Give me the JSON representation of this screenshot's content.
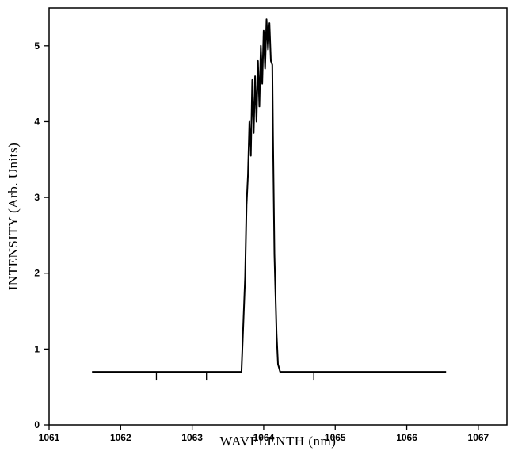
{
  "chart_data": {
    "type": "line",
    "xlabel": "WAVELENTH  (nm)",
    "ylabel": "INTENSITY  (Arb.  Units)",
    "xlim": [
      1061,
      1067.4
    ],
    "ylim": [
      0,
      5.5
    ],
    "xticks": [
      1061,
      1062,
      1063,
      1064,
      1065,
      1066,
      1067
    ],
    "yticks": [
      0,
      1,
      2,
      3,
      4,
      5
    ],
    "grid": false,
    "series": [
      {
        "color": "#000000",
        "x": [
          1061.6,
          1063.69,
          1063.74,
          1063.76,
          1063.78,
          1063.8,
          1063.82,
          1063.84,
          1063.86,
          1063.88,
          1063.9,
          1063.92,
          1063.94,
          1063.96,
          1063.98,
          1064.0,
          1064.02,
          1064.04,
          1064.06,
          1064.08,
          1064.1,
          1064.12,
          1064.13,
          1064.15,
          1064.18,
          1064.2,
          1064.23,
          1064.27,
          1066.55
        ],
        "y": [
          0.7,
          0.7,
          1.95,
          2.9,
          3.3,
          4.0,
          3.55,
          4.55,
          3.85,
          4.6,
          4.0,
          4.8,
          4.2,
          5.0,
          4.5,
          5.2,
          4.7,
          5.35,
          4.95,
          5.3,
          4.8,
          4.75,
          3.8,
          2.25,
          1.2,
          0.8,
          0.7,
          0.7,
          0.7
        ]
      }
    ],
    "minor_ticks_on_series": [
      1062.5,
      1063.2,
      1064.7
    ]
  }
}
